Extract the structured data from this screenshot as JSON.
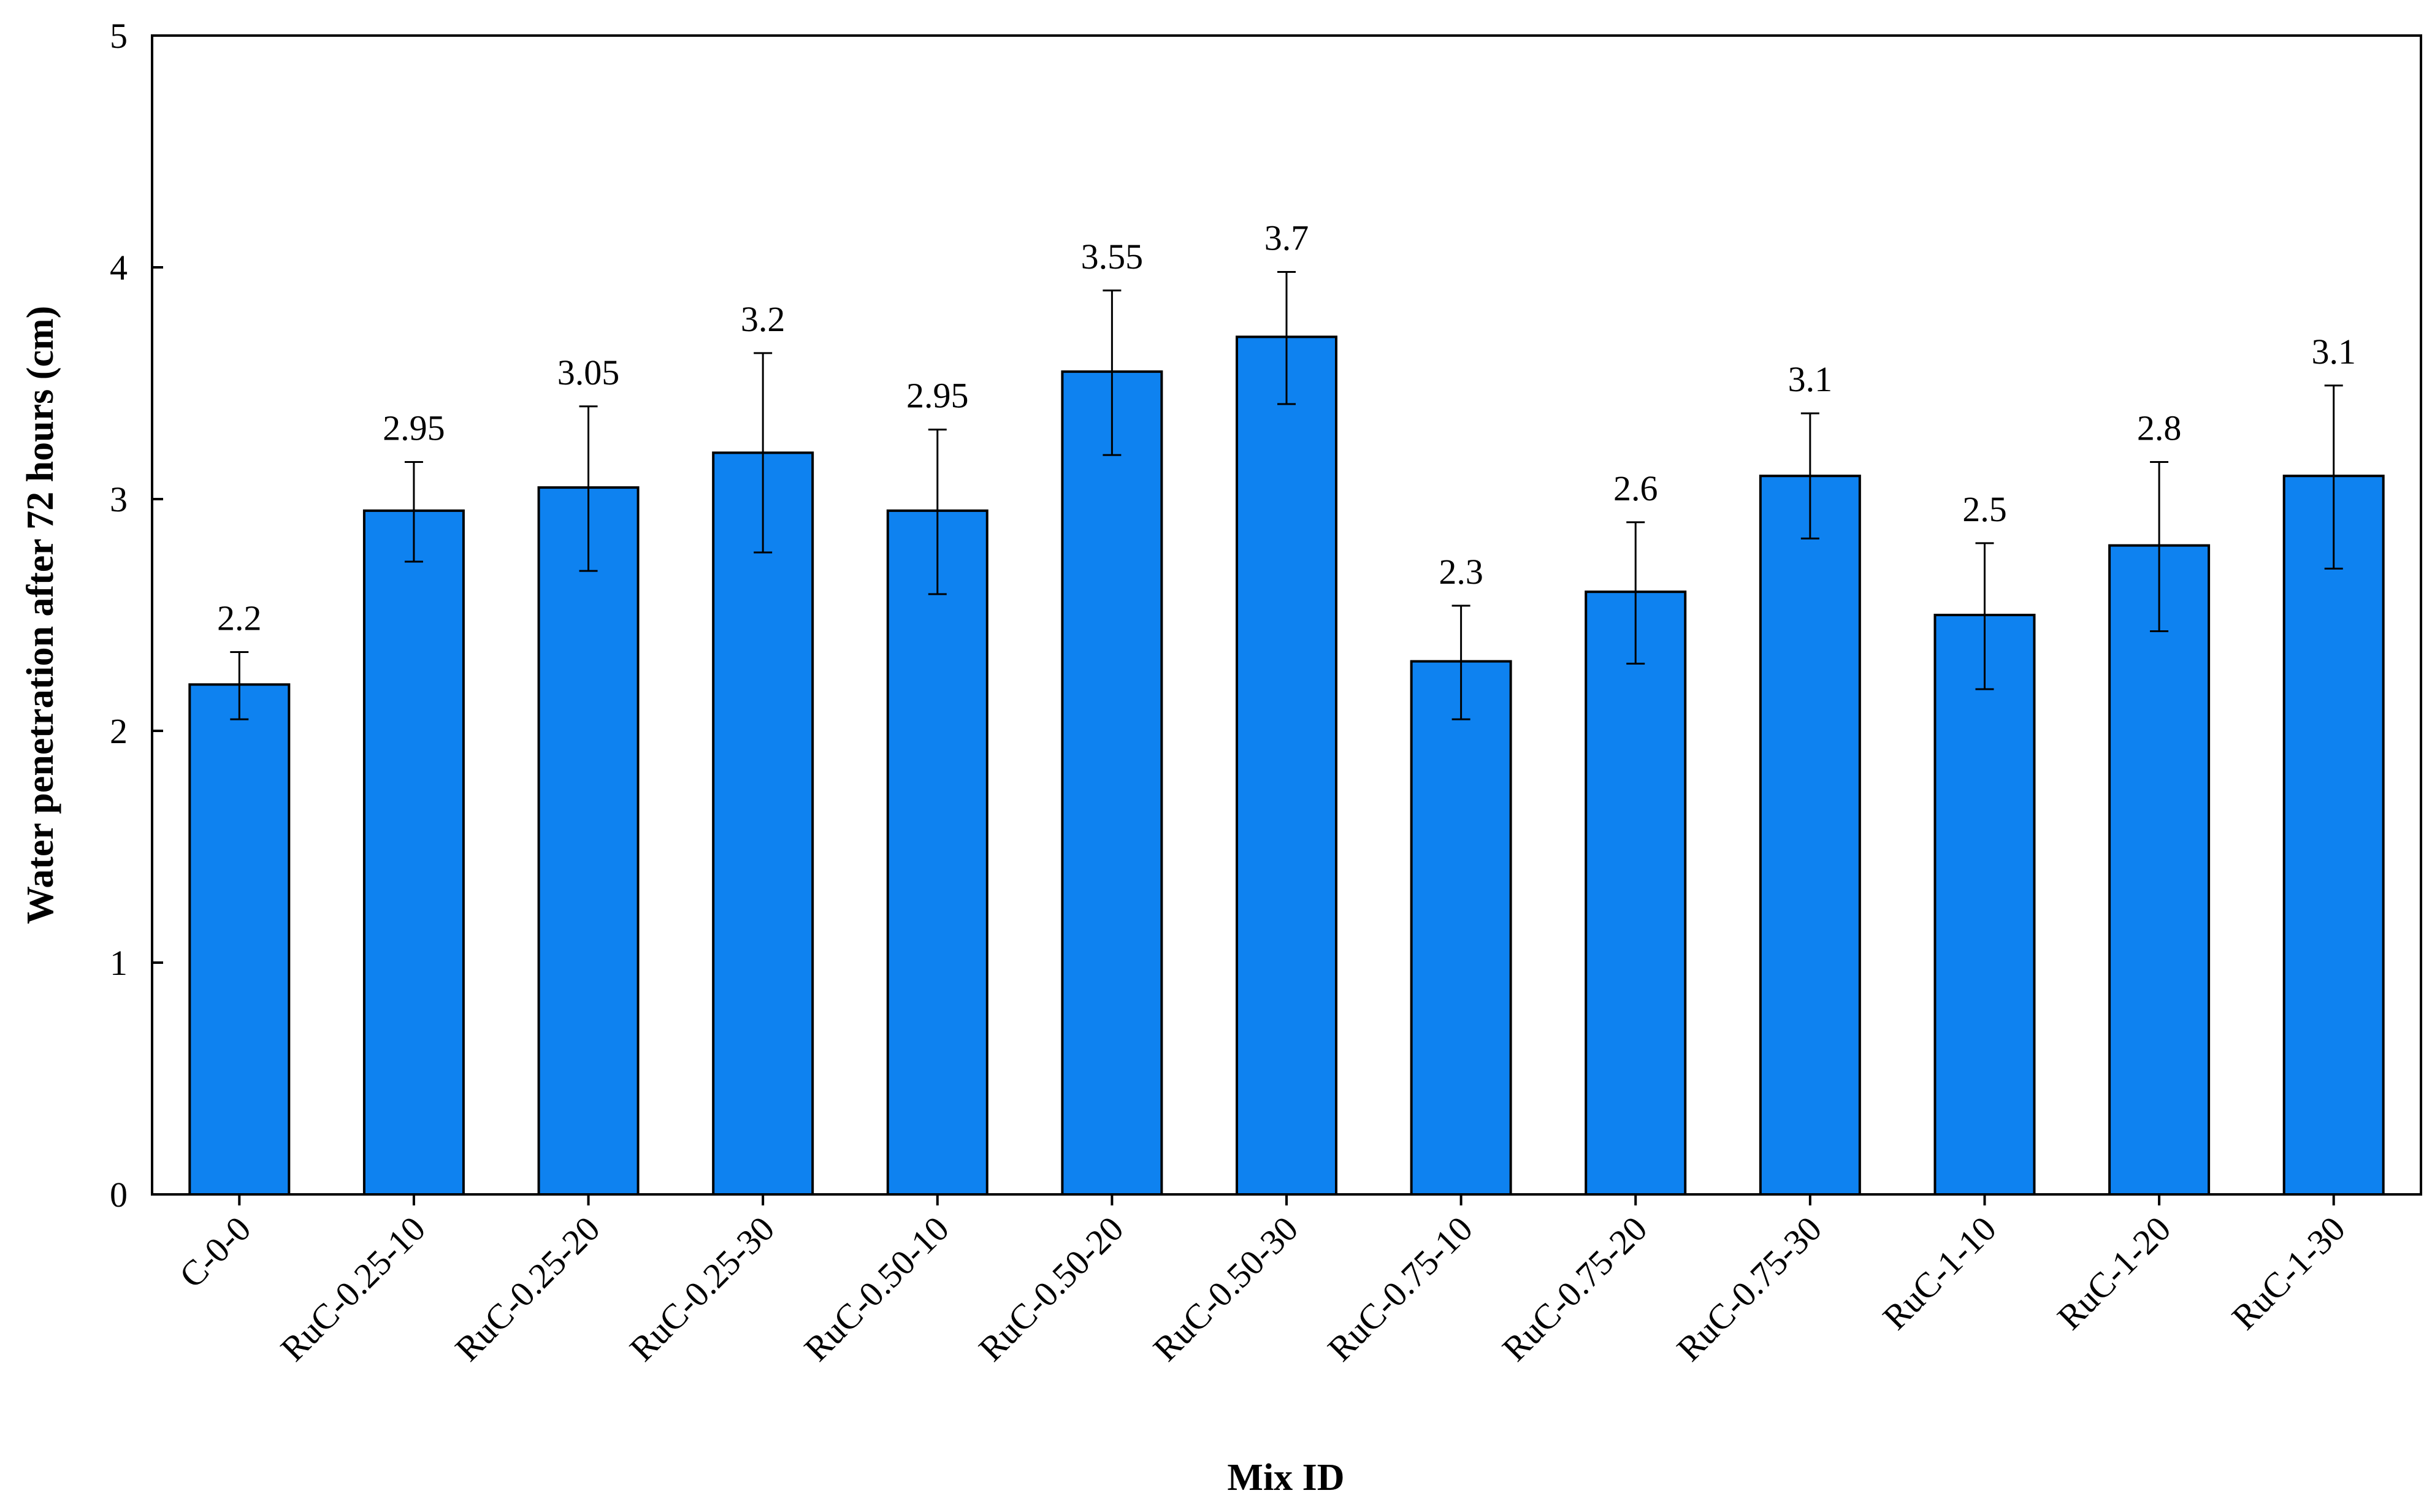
{
  "chart_data": {
    "type": "bar",
    "categories": [
      "C-0-0",
      "RuC-0.25-10",
      "RuC-0.25-20",
      "RuC-0.25-30",
      "RuC-0.50-10",
      "RuC-0.50-20",
      "RuC-0.50-30",
      "RuC-0.75-10",
      "RuC-0.75-20",
      "RuC-0.75-30",
      "RuC-1-10",
      "RuC-1-20",
      "RuC-1-30"
    ],
    "values": [
      2.2,
      2.95,
      3.05,
      3.2,
      2.95,
      3.55,
      3.7,
      2.3,
      2.6,
      3.1,
      2.5,
      2.8,
      3.1
    ],
    "data_labels": [
      "2.2",
      "2.95",
      "3.05",
      "3.2",
      "2.95",
      "3.55",
      "3.7",
      "2.3",
      "2.6",
      "3.1",
      "2.5",
      "2.8",
      "3.1"
    ],
    "error_low": [
      2.05,
      2.73,
      2.69,
      2.77,
      2.59,
      3.19,
      3.41,
      2.05,
      2.29,
      2.83,
      2.18,
      2.43,
      2.7
    ],
    "error_high": [
      2.34,
      3.16,
      3.4,
      3.63,
      3.3,
      3.9,
      3.98,
      2.54,
      2.9,
      3.37,
      2.81,
      3.16,
      3.49
    ],
    "xlabel": "Mix ID",
    "ylabel": "Water penetration after 72 hours (cm)",
    "ylim": [
      0,
      5
    ],
    "yticks": [
      "0",
      "1",
      "2",
      "3",
      "4",
      "5"
    ],
    "grid": false,
    "bar_color": "#0e82f0",
    "bar_edge_color": "#000000"
  }
}
